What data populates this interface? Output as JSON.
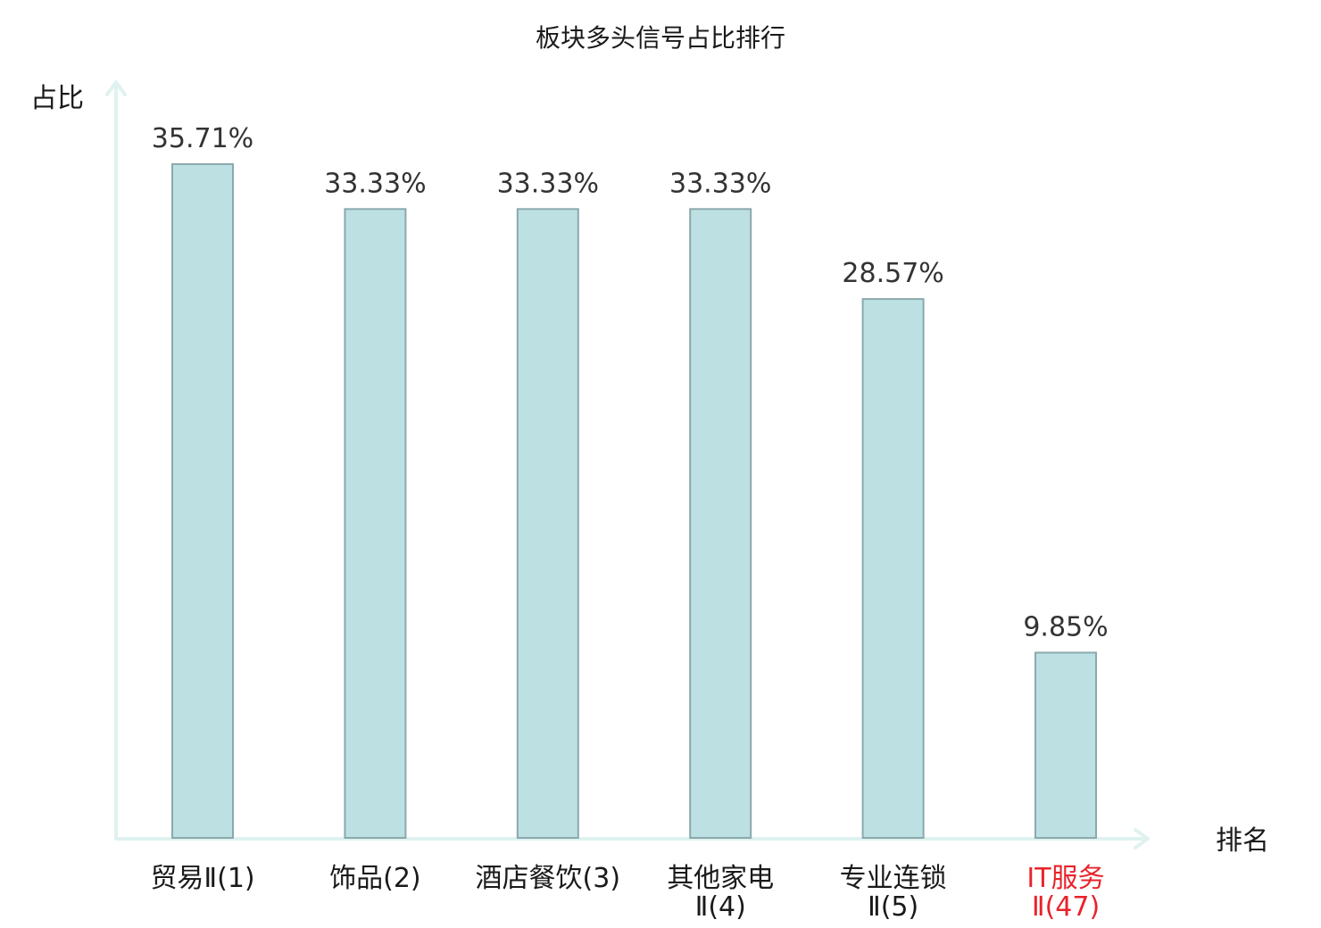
{
  "chart_data": {
    "type": "bar",
    "title": "板块多头信号占比排行",
    "xlabel": "排名",
    "ylabel": "占比",
    "categories": [
      [
        "贸易Ⅱ(1)"
      ],
      [
        "饰品(2)"
      ],
      [
        "酒店餐饮(3)"
      ],
      [
        "其他家电",
        "Ⅱ(4)"
      ],
      [
        "专业连锁",
        "Ⅱ(5)"
      ],
      [
        "IT服务",
        "Ⅱ(47)"
      ]
    ],
    "values": [
      35.71,
      33.33,
      33.33,
      33.33,
      28.57,
      9.85
    ],
    "value_labels": [
      "35.71%",
      "33.33%",
      "33.33%",
      "33.33%",
      "28.57%",
      "9.85%"
    ],
    "ylim": [
      0,
      37.5
    ],
    "grid": false,
    "legend": "none",
    "highlight_index": 5,
    "colors": {
      "bar_fill": "#bde0e3",
      "bar_stroke": "#8aa9ad",
      "axis": "#dff2ef",
      "text": "#1a1a1a",
      "value_text": "#333333",
      "highlight_text": "#e8232a"
    }
  }
}
